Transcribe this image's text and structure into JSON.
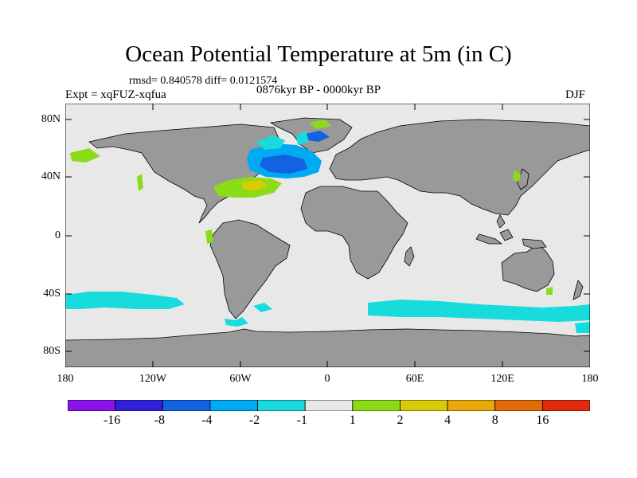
{
  "title": "Ocean Potential Temperature at 5m (in C)",
  "stats": "rmsd= 0.840578   diff= 0.0121574",
  "experiment": "Expt = xqFUZ-xqfua",
  "period": "0876kyr BP - 0000kyr BP",
  "season": "DJF",
  "axes": {
    "lon_ticks": [
      "180",
      "120W",
      "60W",
      "0",
      "60E",
      "120E",
      "180"
    ],
    "lat_ticks": [
      "80N",
      "40N",
      "0",
      "40S",
      "80S"
    ]
  },
  "colorbar": {
    "colors": [
      "#8b12e8",
      "#3020dc",
      "#1262e2",
      "#00aaf2",
      "#18dcdc",
      "#e8e8e8",
      "#8bdc18",
      "#d8cc08",
      "#e8a808",
      "#e26a08",
      "#e02a0a"
    ],
    "labels": [
      "-16",
      "-8",
      "-4",
      "-2",
      "-1",
      "1",
      "2",
      "4",
      "8",
      "16"
    ]
  },
  "map_colors": {
    "ocean_neutral": "#e8e8e8",
    "land": "#999999",
    "cool_light": "#18dcdc",
    "cool_medium": "#00aaf2",
    "cool_strong": "#1262e2",
    "warm_light": "#8bdc18",
    "warm_medium": "#d8cc08"
  }
}
